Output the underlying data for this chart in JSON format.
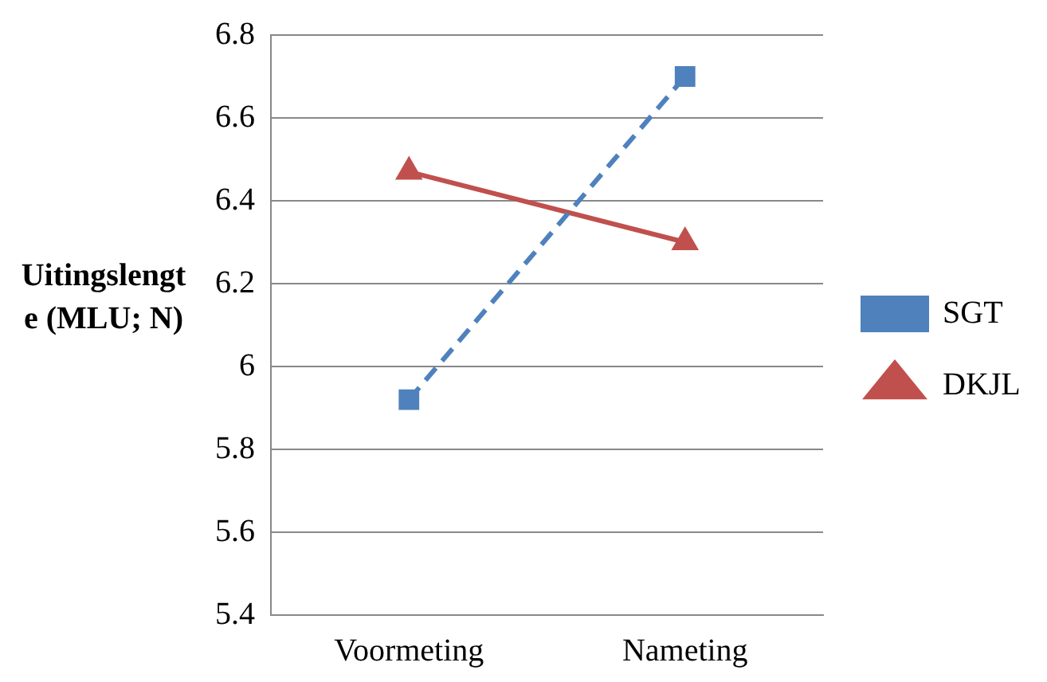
{
  "chart_data": {
    "type": "line",
    "ylabel": "Uitingslengte (MLU; N)",
    "categories": [
      "Voormeting",
      "Nameting"
    ],
    "series": [
      {
        "name": "SGT",
        "color": "#4f81bd",
        "values": [
          5.92,
          6.7
        ],
        "marker": "square",
        "line_style": "dashed"
      },
      {
        "name": "DKJL",
        "color": "#c0504d",
        "values": [
          6.47,
          6.3
        ],
        "marker": "triangle",
        "line_style": "solid"
      }
    ],
    "ylim": [
      5.4,
      6.8
    ],
    "yticks": [
      5.4,
      5.6,
      5.8,
      6,
      6.2,
      6.4,
      6.6,
      6.8
    ],
    "grid": "y",
    "legend": "right"
  }
}
